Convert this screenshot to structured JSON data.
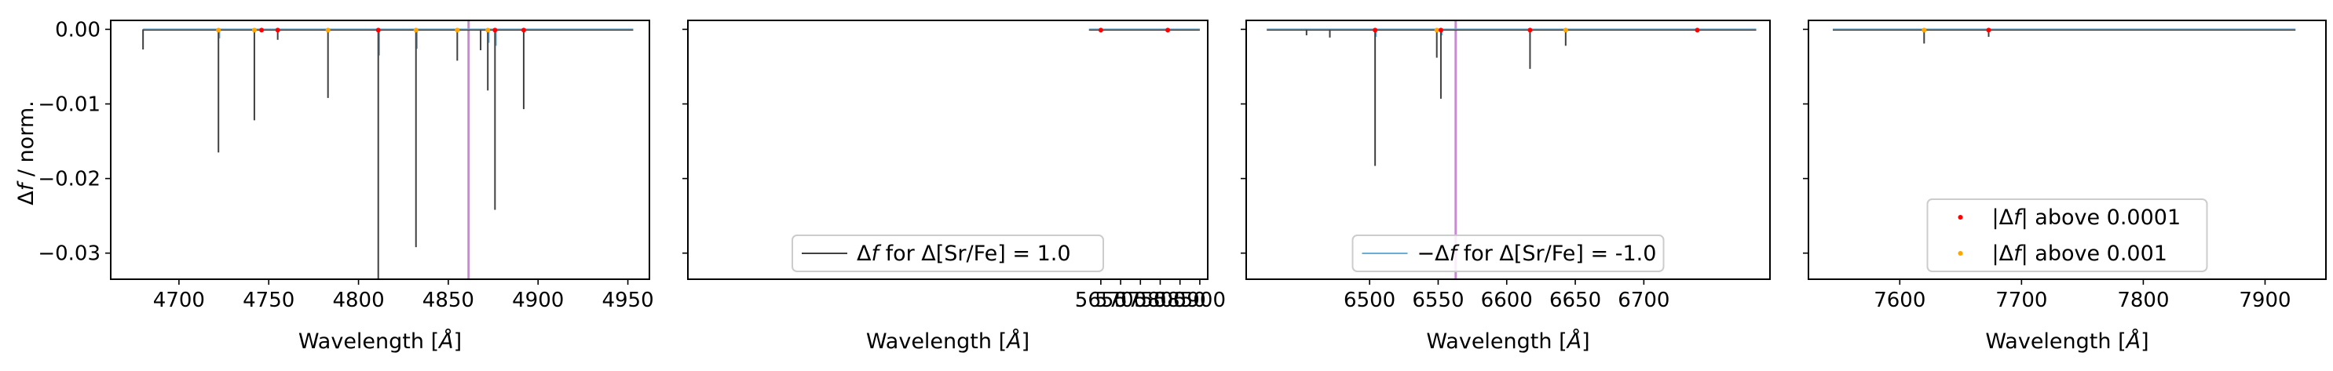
{
  "chart_data": {
    "type": "line",
    "ylabel": "Δf / norm.",
    "xlabel": "Wavelength [Å]",
    "ylim": [
      -0.0335,
      0.0012
    ],
    "yticks": [
      0.0,
      -0.01,
      -0.02,
      -0.03
    ],
    "ytick_labels": [
      "0.00",
      "−0.01",
      "−0.02",
      "−0.03"
    ],
    "colors": {
      "pos_diff": "#404040",
      "neg_diff": "#6aaed6",
      "above_0001": "#ff0000",
      "above_001": "#ffa500",
      "line_marker": "#c88bd0"
    },
    "legends": [
      {
        "panel": 1,
        "location": "lower center",
        "entries": [
          {
            "kind": "line",
            "color_key": "pos_diff",
            "label": "Δf for Δ[Sr/Fe] = 1.0"
          }
        ]
      },
      {
        "panel": 2,
        "location": "lower center",
        "entries": [
          {
            "kind": "line",
            "color_key": "neg_diff",
            "label": "−Δf for Δ[Sr/Fe] = -1.0"
          }
        ]
      },
      {
        "panel": 3,
        "location": "lower center",
        "entries": [
          {
            "kind": "marker",
            "color_key": "above_0001",
            "label": "|Δf| above 0.0001"
          },
          {
            "kind": "marker",
            "color_key": "above_001",
            "label": "|Δf| above 0.001"
          }
        ]
      }
    ],
    "panels": [
      {
        "xlim": [
          4662,
          4962
        ],
        "data_x": [
          4680,
          4953
        ],
        "xticks": [
          4700,
          4750,
          4800,
          4850,
          4900,
          4950
        ],
        "xtick_labels": [
          "4700",
          "4750",
          "4800",
          "4850",
          "4900",
          "4950"
        ],
        "vline": 4861.3,
        "pos_lines": [
          {
            "x": 4680,
            "depth": -0.0027
          },
          {
            "x": 4722,
            "depth": -0.0165
          },
          {
            "x": 4742,
            "depth": -0.0122
          },
          {
            "x": 4755,
            "depth": -0.0014
          },
          {
            "x": 4783,
            "depth": -0.0092
          },
          {
            "x": 4811,
            "depth": -0.0335
          },
          {
            "x": 4832,
            "depth": -0.0292
          },
          {
            "x": 4855,
            "depth": -0.0042
          },
          {
            "x": 4868,
            "depth": -0.0028
          },
          {
            "x": 4872,
            "depth": -0.0082
          },
          {
            "x": 4876,
            "depth": -0.0242
          },
          {
            "x": 4892,
            "depth": -0.0107
          }
        ],
        "neg_lines": [
          {
            "x": 4722,
            "depth": -0.0012
          },
          {
            "x": 4811,
            "depth": -0.0035
          },
          {
            "x": 4832,
            "depth": -0.0026
          },
          {
            "x": 4872,
            "depth": -0.0018
          },
          {
            "x": 4876,
            "depth": -0.0022
          }
        ],
        "markers_0001": [
          4746,
          4755,
          4811,
          4876,
          4892
        ],
        "markers_001": [
          4722,
          4742,
          4783,
          4832,
          4855,
          4872
        ]
      },
      {
        "xlim": [
          4607,
          5920
        ],
        "data_x": [
          5620,
          5900
        ],
        "xticks": [
          5650,
          5700,
          5750,
          5800,
          5850,
          5900
        ],
        "xtick_labels": [
          "5650",
          "5700",
          "5750",
          "5800",
          "5850",
          "5900"
        ],
        "xmin_override": 5608,
        "pos_lines": [
          {
            "x": 5650,
            "depth": -0.0004
          },
          {
            "x": 5819,
            "depth": -0.0004
          }
        ],
        "neg_lines": [],
        "markers_0001": [
          5650,
          5819
        ],
        "markers_001": []
      },
      {
        "xlim": [
          6410,
          6792
        ],
        "data_x": [
          6425,
          6782
        ],
        "xticks": [
          6500,
          6550,
          6600,
          6650,
          6700
        ],
        "xtick_labels": [
          "6500",
          "6550",
          "6600",
          "6650",
          "6700"
        ],
        "vline": 6562.8,
        "pos_lines": [
          {
            "x": 6454,
            "depth": -0.0008
          },
          {
            "x": 6471,
            "depth": -0.0011
          },
          {
            "x": 6504,
            "depth": -0.0183
          },
          {
            "x": 6549,
            "depth": -0.0038
          },
          {
            "x": 6552,
            "depth": -0.0093
          },
          {
            "x": 6617,
            "depth": -0.0053
          },
          {
            "x": 6643,
            "depth": -0.0022
          },
          {
            "x": 6739,
            "depth": -0.0004
          }
        ],
        "neg_lines": [
          {
            "x": 6504,
            "depth": -0.001
          },
          {
            "x": 6552,
            "depth": -0.0008
          }
        ],
        "markers_0001": [
          6504,
          6552,
          6617,
          6739
        ],
        "markers_001": [
          6549,
          6643
        ]
      },
      {
        "xlim": [
          7525,
          7950
        ],
        "data_x": [
          7545,
          7925
        ],
        "xticks": [
          7600,
          7700,
          7800,
          7900
        ],
        "xtick_labels": [
          "7600",
          "7700",
          "7800",
          "7900"
        ],
        "pos_lines": [
          {
            "x": 7620,
            "depth": -0.0019
          },
          {
            "x": 7673,
            "depth": -0.001
          }
        ],
        "neg_lines": [],
        "markers_0001": [
          7673
        ],
        "markers_001": [
          7620
        ]
      }
    ]
  }
}
